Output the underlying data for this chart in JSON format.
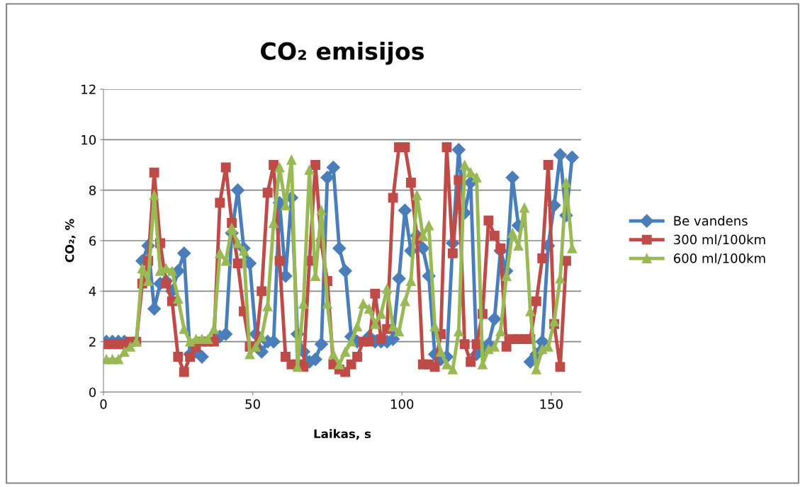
{
  "chart_data": {
    "type": "line",
    "title": "CO₂ emisijos",
    "xlabel": "Laikas, s",
    "ylabel": "CO₂, %",
    "x": [
      1,
      3,
      5,
      7,
      9,
      11,
      13,
      15,
      17,
      19,
      21,
      23,
      25,
      27,
      29,
      31,
      33,
      35,
      37,
      39,
      41,
      43,
      45,
      47,
      49,
      51,
      53,
      55,
      57,
      59,
      61,
      63,
      65,
      67,
      69,
      71,
      73,
      75,
      77,
      79,
      81,
      83,
      85,
      87,
      89,
      91,
      93,
      95,
      97,
      99,
      101,
      103,
      105,
      107,
      109,
      111,
      113,
      115,
      117,
      119,
      121,
      123,
      125,
      127,
      129,
      131,
      133,
      135,
      137,
      139,
      141,
      143,
      145,
      147,
      149,
      151,
      153,
      155,
      157
    ],
    "series": [
      {
        "name": "Be vandens",
        "color": "#4a7ebb",
        "marker": "diamond",
        "values": [
          2,
          2,
          2,
          2,
          null,
          null,
          5.2,
          5.8,
          3.3,
          4.3,
          4.4,
          4.0,
          4.8,
          5.5,
          1.5,
          1.6,
          1.4,
          null,
          null,
          2.2,
          2.3,
          6.3,
          8.0,
          5.7,
          5.1,
          2.3,
          1.6,
          2.0,
          2.0,
          7.5,
          4.6,
          7.7,
          2.3,
          1.6,
          1.2,
          1.3,
          1.9,
          8.5,
          8.9,
          5.7,
          4.8,
          2.2,
          2.0,
          null,
          2.2,
          2.0,
          2.0,
          2.0,
          2.1,
          4.5,
          7.2,
          5.6,
          6.2,
          5.7,
          4.6,
          1.5,
          1.3,
          1.4,
          5.9,
          9.6,
          7.1,
          8.3,
          1.5,
          1.6,
          1.9,
          2.9,
          5.6,
          4.8,
          8.5,
          6.6,
          null,
          1.2,
          1.5,
          2.0,
          5.8,
          7.4,
          9.4,
          7.0,
          9.3
        ]
      },
      {
        "name": "300 ml/100km",
        "color": "#be4b48",
        "marker": "square",
        "values": [
          1.9,
          1.9,
          1.9,
          1.9,
          2.0,
          2.0,
          4.3,
          5.2,
          8.7,
          5.9,
          4.3,
          3.6,
          1.4,
          0.8,
          1.4,
          1.8,
          2.0,
          2.0,
          2.0,
          7.5,
          8.9,
          6.7,
          5.1,
          3.2,
          1.8,
          1.8,
          4.0,
          7.9,
          9.0,
          5.2,
          1.4,
          1.1,
          1.1,
          1.0,
          5.2,
          9.0,
          5.9,
          4.4,
          1.1,
          0.9,
          0.8,
          1.1,
          1.4,
          2.0,
          2.0,
          3.9,
          2.1,
          2.5,
          7.7,
          9.7,
          9.7,
          8.3,
          6.1,
          1.1,
          1.1,
          1.0,
          2.3,
          9.7,
          5.5,
          8.4,
          1.9,
          1.2,
          1.9,
          3.1,
          6.8,
          6.2,
          5.7,
          1.8,
          2.1,
          2.1,
          2.1,
          2.1,
          3.6,
          5.3,
          9.0,
          2.7,
          1.0,
          5.2,
          null
        ]
      },
      {
        "name": "600 ml/100km",
        "color": "#98b954",
        "marker": "triangle",
        "values": [
          1.3,
          1.3,
          1.3,
          1.6,
          1.8,
          2.0,
          4.9,
          4.4,
          7.8,
          4.8,
          4.9,
          4.8,
          3.7,
          2.5,
          2.0,
          2.1,
          2.1,
          2.1,
          2.5,
          5.5,
          5.2,
          6.5,
          5.9,
          5.6,
          1.5,
          1.8,
          2.2,
          3.4,
          6.7,
          8.9,
          7.4,
          9.2,
          1.0,
          3.5,
          8.8,
          4.6,
          7.2,
          3.5,
          1.5,
          1.1,
          1.6,
          2.0,
          2.6,
          3.5,
          3.3,
          2.7,
          3.1,
          4.1,
          2.6,
          2.4,
          3.6,
          4.4,
          7.8,
          6.2,
          6.6,
          2.6,
          1.6,
          1.1,
          0.9,
          2.4,
          9.0,
          8.7,
          8.5,
          1.1,
          1.7,
          1.8,
          2.4,
          4.6,
          6.3,
          5.8,
          7.3,
          3.2,
          0.9,
          1.7,
          1.8,
          2.8,
          4.5,
          8.3,
          5.7
        ]
      }
    ],
    "xlim": [
      0,
      160
    ],
    "xticks": [
      0,
      50,
      100,
      150
    ],
    "ylim": [
      0,
      12
    ],
    "yticks": [
      0,
      2,
      4,
      6,
      8,
      10,
      12
    ],
    "grid": "y",
    "legend": "right",
    "line_style": "solid"
  }
}
